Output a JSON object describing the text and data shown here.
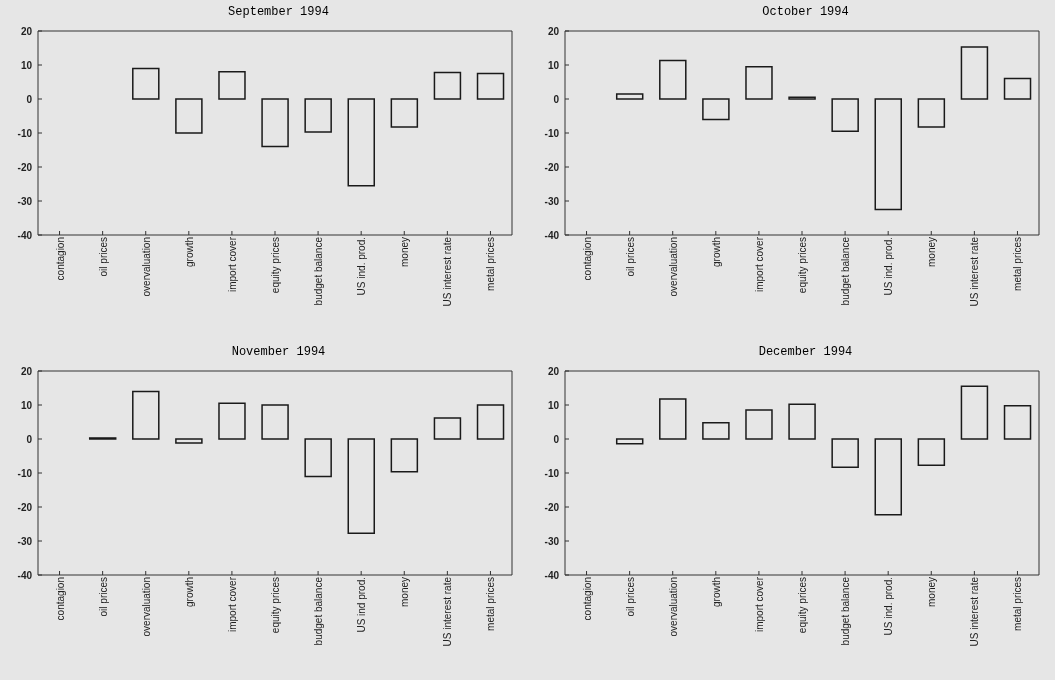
{
  "chart_data": [
    {
      "type": "bar",
      "title": "September 1994",
      "categories": [
        "contagion",
        "oil prices",
        "overvaluation",
        "growth",
        "import cover",
        "equity prices",
        "budget balance",
        "US ind. prod.",
        "money",
        "US interest rate",
        "metal prices"
      ],
      "values": [
        0,
        0,
        9,
        -10,
        8,
        -14,
        -9.7,
        -25.5,
        -8.2,
        7.8,
        7.5
      ],
      "color": "#1a1a1a",
      "ylim": [
        -40,
        20
      ],
      "yticks": [
        -40,
        -30,
        -20,
        -10,
        0,
        10,
        20
      ]
    },
    {
      "type": "bar",
      "title": "October 1994",
      "categories": [
        "contagion",
        "oil prices",
        "overvaluation",
        "growth",
        "import cover",
        "equity prices",
        "budget balance",
        "US ind. prod.",
        "money",
        "US interest rate",
        "metal prices"
      ],
      "values": [
        0,
        1.5,
        11.3,
        -6,
        9.5,
        0.5,
        -9.5,
        -32.5,
        -8.2,
        15.3,
        6
      ],
      "color": "#1a1a1a",
      "ylim": [
        -40,
        20
      ],
      "yticks": [
        -40,
        -30,
        -20,
        -10,
        0,
        10,
        20
      ]
    },
    {
      "type": "bar",
      "title": "November 1994",
      "categories": [
        "contagion",
        "oil prices",
        "overvaluation",
        "growth",
        "import cover",
        "equity prices",
        "budget balance",
        "US ind prod.",
        "money",
        "US interest rate",
        "metal prices"
      ],
      "values": [
        0,
        0.3,
        14,
        -1.2,
        10.5,
        10,
        -11,
        -27.7,
        -9.6,
        6.2,
        10
      ],
      "color": "#1a1a1a",
      "ylim": [
        -40,
        20
      ],
      "yticks": [
        -40,
        -30,
        -20,
        -10,
        0,
        10,
        20
      ]
    },
    {
      "type": "bar",
      "title": "December 1994",
      "categories": [
        "contagion",
        "oil prices",
        "overvaluation",
        "growth",
        "import cover",
        "equity prices",
        "budget balance",
        "US ind. prod.",
        "money",
        "US interest rate",
        "metal prices"
      ],
      "values": [
        0,
        -1.4,
        11.8,
        4.8,
        8.5,
        10.2,
        -8.3,
        -22.3,
        -7.7,
        15.5,
        9.8
      ],
      "color": "#1a1a1a",
      "ylim": [
        -40,
        20
      ],
      "yticks": [
        -40,
        -30,
        -20,
        -10,
        0,
        10,
        20
      ]
    }
  ]
}
